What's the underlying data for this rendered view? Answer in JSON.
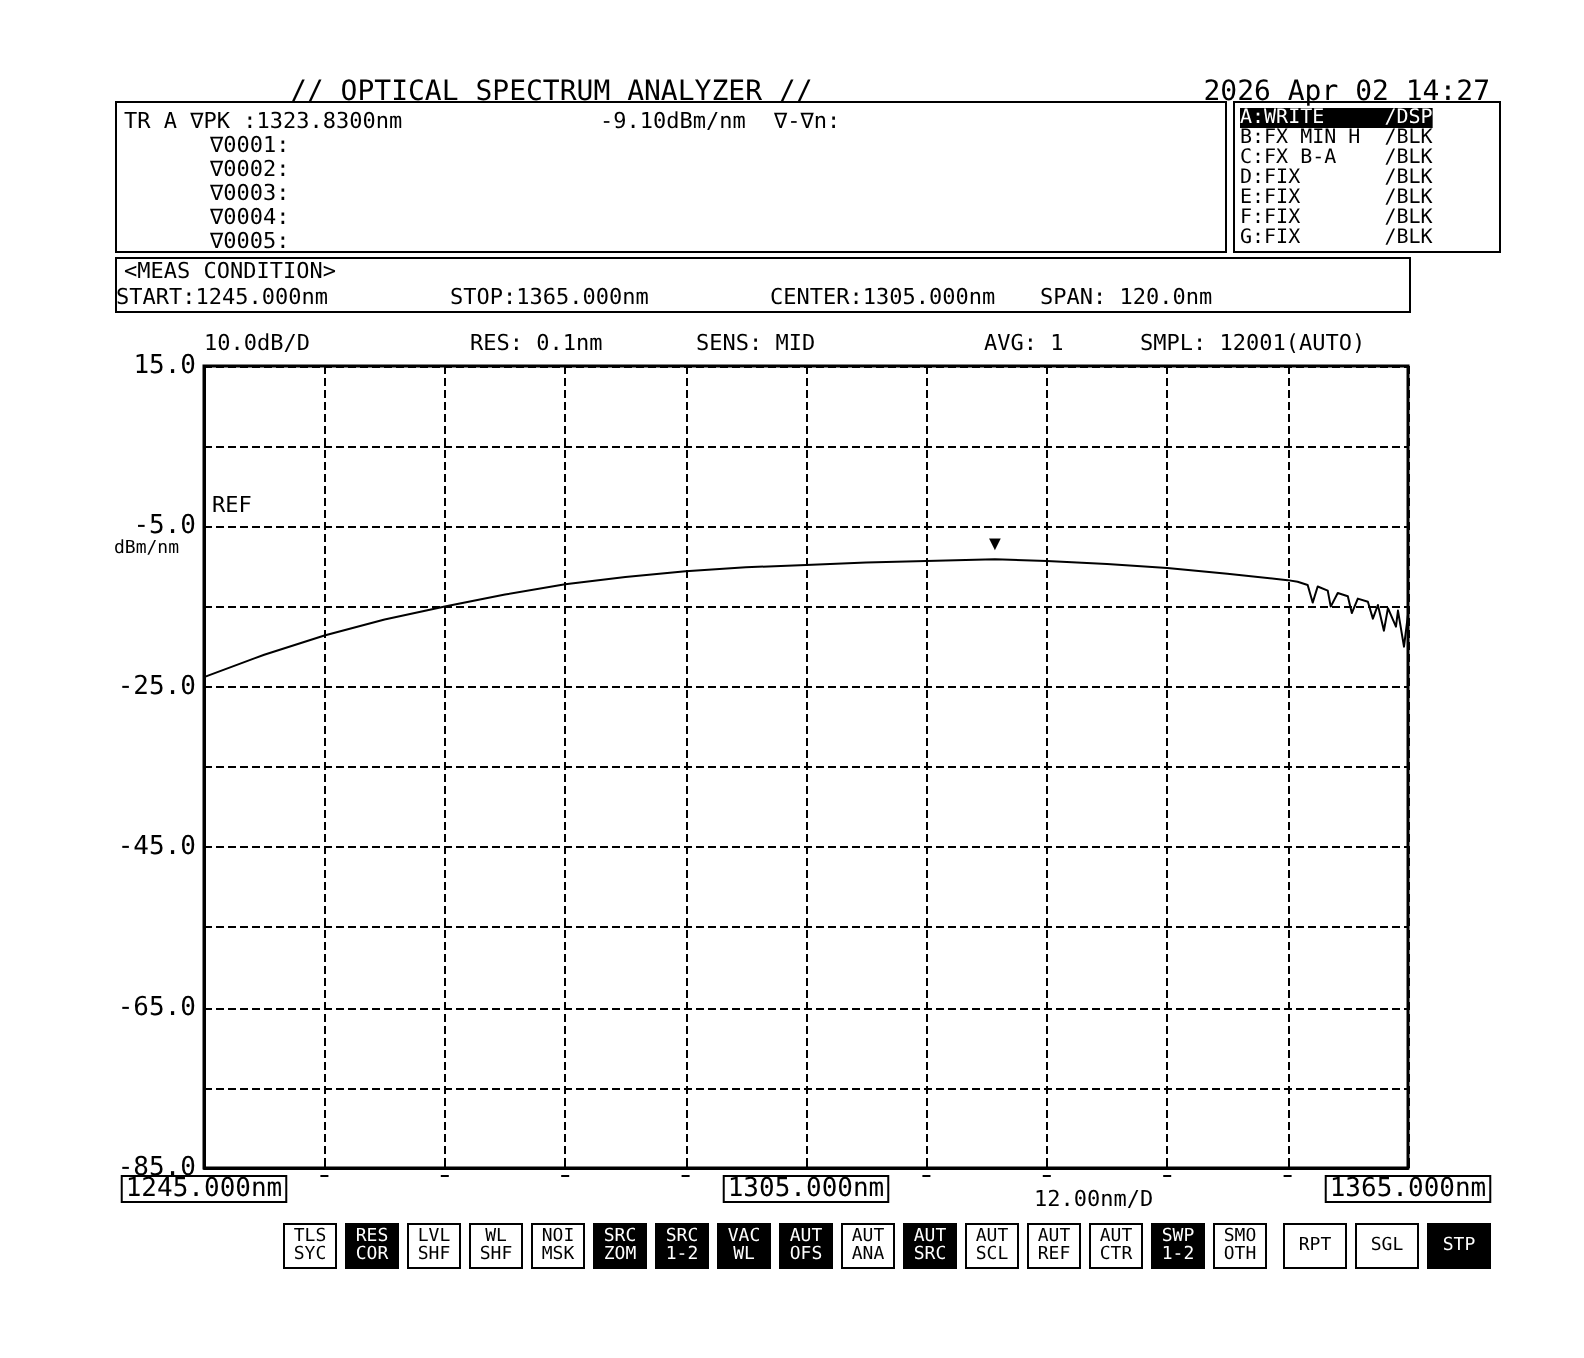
{
  "chart_data": {
    "type": "line",
    "title": "// OPTICAL SPECTRUM ANALYZER //",
    "subtitle": "2026 Apr 02 14:27",
    "ylabel": "dBm/nm",
    "series": [
      {
        "color": "#000000",
        "x": [
          1245,
          1251,
          1257,
          1263,
          1269,
          1275,
          1281,
          1287,
          1293,
          1299,
          1305,
          1311,
          1317,
          1323.83,
          1329,
          1335,
          1341,
          1347,
          1353,
          1354,
          1355,
          1355.5,
          1356,
          1357,
          1357.3,
          1358,
          1359,
          1359.4,
          1360,
          1361,
          1361.5,
          1362,
          1362.6,
          1363,
          1363.8,
          1364,
          1364.6,
          1365
        ],
        "values": [
          -23.8,
          -21.0,
          -18.6,
          -16.6,
          -15.0,
          -13.5,
          -12.2,
          -11.3,
          -10.6,
          -10.1,
          -9.8,
          -9.5,
          -9.3,
          -9.1,
          -9.3,
          -9.7,
          -10.2,
          -10.9,
          -11.7,
          -11.9,
          -12.3,
          -14.5,
          -12.5,
          -13.0,
          -15.0,
          -13.3,
          -13.7,
          -15.8,
          -14.0,
          -14.4,
          -16.5,
          -14.8,
          -18.0,
          -15.2,
          -17.5,
          -15.5,
          -20.0,
          -16.0
        ]
      }
    ],
    "xlim": [
      1245,
      1365
    ],
    "xticks": [
      {
        "value": 1245,
        "label": "1245.000nm"
      },
      {
        "value": 1257,
        "label": null
      },
      {
        "value": 1269,
        "label": null
      },
      {
        "value": 1281,
        "label": null
      },
      {
        "value": 1293,
        "label": null
      },
      {
        "value": 1305,
        "label": "1305.000nm"
      },
      {
        "value": 1317,
        "label": null
      },
      {
        "value": 1329,
        "label": null
      },
      {
        "value": 1341,
        "label": null
      },
      {
        "value": 1353,
        "label": null
      },
      {
        "value": 1365,
        "label": "1365.000nm"
      }
    ],
    "ylim": [
      -85,
      15
    ],
    "yticks": [
      {
        "value": -85,
        "label": "-85.0"
      },
      {
        "value": -75,
        "label": null
      },
      {
        "value": -65,
        "label": "-65.0"
      },
      {
        "value": -55,
        "label": null
      },
      {
        "value": -45,
        "label": "-45.0"
      },
      {
        "value": -35,
        "label": null
      },
      {
        "value": -25,
        "label": "-25.0"
      },
      {
        "value": -15,
        "label": null
      },
      {
        "value": -5,
        "label": "-5.0"
      },
      {
        "value": 5,
        "label": null
      },
      {
        "value": 15,
        "label": "15.0"
      }
    ],
    "grid": true,
    "marker": "none",
    "line_style": "solid",
    "annotations": [
      "TR A ∇PK :1323.8300nm",
      "-9.10dBm/nm",
      "∇-∇n:",
      "∇0001:",
      "∇0002:",
      "∇0003:",
      "∇0004:",
      "∇0005:",
      "A:WRITE     /DSP",
      "B:FX MIN H  /BLK",
      "C:FX B-A    /BLK",
      "D:FIX       /BLK",
      "E:FIX       /BLK",
      "F:FIX       /BLK",
      "G:FIX       /BLK",
      "<MEAS CONDITION>",
      "START:1245.000nm",
      "STOP:1365.000nm",
      "CENTER:1305.000nm",
      "SPAN: 120.0nm",
      "10.0dB/D",
      "RES: 0.1nm",
      "SENS: MID",
      "AVG: 1",
      "SMPL: 12001(AUTO)",
      "REF",
      "12.00nm/D",
      "TLS\nSYC",
      "RES\nCOR",
      "LVL\nSHF",
      "WL\nSHF",
      "NOI\nMSK",
      "SRC\nZOM",
      "SRC\n1-2",
      "VAC\nWL",
      "AUT\nOFS",
      "AUT\nANA",
      "AUT\nSRC",
      "AUT\nSCL",
      "AUT\nREF",
      "AUT\nCTR",
      "SWP\n1-2",
      "SMO\nOTH",
      "RPT",
      "SGL",
      "STP",
      {
        "text": "▼",
        "x": 1323.83,
        "y": -9.1
      }
    ]
  }
}
